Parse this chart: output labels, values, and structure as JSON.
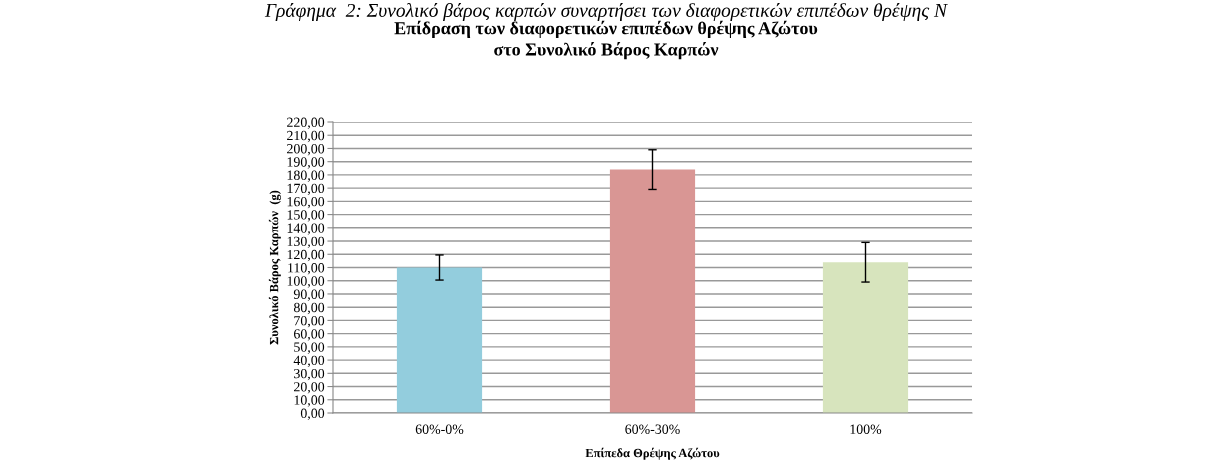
{
  "chart_data": {
    "type": "bar",
    "title": "Επίδραση των διαφορετικών επιπέδων θρέψης Αζώτου\nστο Συνολικό Βάρος Καρπών",
    "annotations": [
      "Γράφημα  2: Συνολικό βάρος καρπών συναρτήσει των διαφορετικών επιπέδων θρέψης Ν"
    ],
    "xlabel": "Επίπεδα Θρέψης Αζώτου",
    "ylabel": "Συνολικό Βάρος Καρπών  (g)",
    "categories": [
      "60%-0%",
      "60%-30%",
      "100%"
    ],
    "values": [
      110,
      184,
      114
    ],
    "colors": [
      "#93cddd",
      "#d99694",
      "#d7e4bd"
    ],
    "errors": [
      9.5,
      15,
      15
    ],
    "ylim": [
      0,
      220
    ],
    "yticks": [
      {
        "value": 0,
        "label": "0,00"
      },
      {
        "value": 10,
        "label": "10,00"
      },
      {
        "value": 20,
        "label": "20,00"
      },
      {
        "value": 30,
        "label": "30,00"
      },
      {
        "value": 40,
        "label": "40,00"
      },
      {
        "value": 50,
        "label": "50,00"
      },
      {
        "value": 60,
        "label": "60,00"
      },
      {
        "value": 70,
        "label": "70,00"
      },
      {
        "value": 80,
        "label": "80,00"
      },
      {
        "value": 90,
        "label": "90,00"
      },
      {
        "value": 100,
        "label": "100,00"
      },
      {
        "value": 110,
        "label": "110,00"
      },
      {
        "value": 120,
        "label": "120,00"
      },
      {
        "value": 130,
        "label": "130,00"
      },
      {
        "value": 140,
        "label": "140,00"
      },
      {
        "value": 150,
        "label": "150,00"
      },
      {
        "value": 160,
        "label": "160,00"
      },
      {
        "value": 170,
        "label": "170,00"
      },
      {
        "value": 180,
        "label": "180,00"
      },
      {
        "value": 190,
        "label": "190,00"
      },
      {
        "value": 200,
        "label": "200,00"
      },
      {
        "value": 210,
        "label": "210,00"
      },
      {
        "value": 220,
        "label": "220,00"
      }
    ],
    "grid": "y",
    "legend": false
  }
}
